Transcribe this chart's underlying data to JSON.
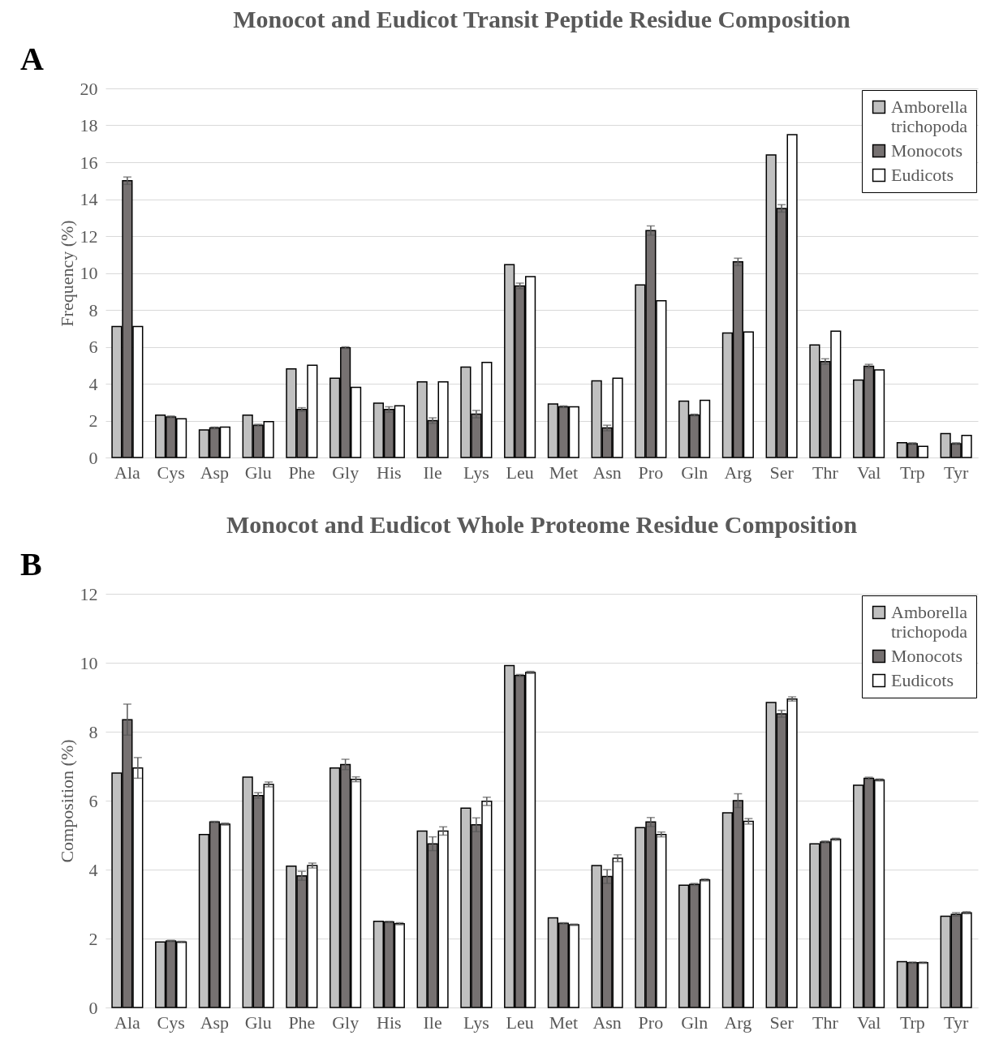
{
  "chart_data": [
    {
      "type": "bar",
      "title": "Monocot and Eudicot Transit Peptide Residue Composition",
      "ylabel": "Frequency (%)",
      "annotations": [
        "A"
      ],
      "categories": [
        "Ala",
        "Cys",
        "Asp",
        "Glu",
        "Phe",
        "Gly",
        "His",
        "Ile",
        "Lys",
        "Leu",
        "Met",
        "Asn",
        "Pro",
        "Gln",
        "Arg",
        "Ser",
        "Thr",
        "Val",
        "Trp",
        "Tyr"
      ],
      "series": [
        {
          "name": "Amborella trichopoda",
          "color": "#c0c0c0",
          "values": [
            7.1,
            2.3,
            1.5,
            2.3,
            4.8,
            4.3,
            2.95,
            4.1,
            4.9,
            10.45,
            2.9,
            4.15,
            9.35,
            3.05,
            6.75,
            16.4,
            6.1,
            4.2,
            0.8,
            1.3
          ]
        },
        {
          "name": "Monocots",
          "color": "#767171",
          "values": [
            15.0,
            2.2,
            1.6,
            1.75,
            2.6,
            5.95,
            2.6,
            2.0,
            2.35,
            9.3,
            2.75,
            1.6,
            12.3,
            2.3,
            10.6,
            13.5,
            5.2,
            4.95,
            0.75,
            0.75
          ],
          "errors": [
            0.2,
            0.05,
            0.05,
            0.05,
            0.1,
            0.05,
            0.15,
            0.15,
            0.2,
            0.15,
            0.05,
            0.15,
            0.25,
            0.05,
            0.2,
            0.2,
            0.15,
            0.1,
            0.05,
            0.05
          ]
        },
        {
          "name": "Eudicots",
          "color": "#ffffff",
          "values": [
            7.1,
            2.1,
            1.65,
            1.95,
            5.0,
            3.8,
            2.8,
            4.1,
            5.15,
            9.8,
            2.75,
            4.3,
            8.5,
            3.1,
            6.8,
            17.5,
            6.85,
            4.75,
            0.6,
            1.2
          ]
        }
      ],
      "ylim": [
        0,
        20
      ],
      "yticks": [
        0,
        2,
        4,
        6,
        8,
        10,
        12,
        14,
        16,
        18,
        20
      ],
      "grid": "y",
      "legend": "top right"
    },
    {
      "type": "bar",
      "title": "Monocot and Eudicot Whole Proteome Residue Composition",
      "ylabel": "Composition (%)",
      "annotations": [
        "B"
      ],
      "categories": [
        "Ala",
        "Cys",
        "Asp",
        "Glu",
        "Phe",
        "Gly",
        "His",
        "Ile",
        "Lys",
        "Leu",
        "Met",
        "Asn",
        "Pro",
        "Gln",
        "Arg",
        "Ser",
        "Thr",
        "Val",
        "Trp",
        "Tyr"
      ],
      "series": [
        {
          "name": "Amborella trichopoda",
          "color": "#c0c0c0",
          "values": [
            6.8,
            1.9,
            5.02,
            6.68,
            4.1,
            6.95,
            2.5,
            5.12,
            5.78,
            9.92,
            2.6,
            4.12,
            5.22,
            3.55,
            5.65,
            8.85,
            4.75,
            6.45,
            1.33,
            2.65
          ]
        },
        {
          "name": "Monocots",
          "color": "#767171",
          "values": [
            8.35,
            1.93,
            5.38,
            6.15,
            3.82,
            7.05,
            2.48,
            4.75,
            5.3,
            9.63,
            2.44,
            3.8,
            5.38,
            3.57,
            6.0,
            8.52,
            4.8,
            6.65,
            1.3,
            2.7
          ],
          "errors": [
            0.45,
            0.02,
            0.02,
            0.08,
            0.13,
            0.15,
            0.02,
            0.2,
            0.2,
            0.03,
            0.02,
            0.2,
            0.13,
            0.03,
            0.2,
            0.1,
            0.03,
            0.03,
            0.02,
            0.05
          ]
        },
        {
          "name": "Eudicots",
          "color": "#ffffff",
          "values": [
            6.95,
            1.9,
            5.32,
            6.47,
            4.12,
            6.62,
            2.43,
            5.12,
            5.98,
            9.72,
            2.4,
            4.33,
            5.02,
            3.7,
            5.4,
            8.95,
            4.88,
            6.6,
            1.3,
            2.75
          ],
          "errors": [
            0.3,
            0.02,
            0.03,
            0.07,
            0.07,
            0.07,
            0.03,
            0.12,
            0.12,
            0.03,
            0.02,
            0.1,
            0.07,
            0.03,
            0.08,
            0.06,
            0.03,
            0.03,
            0.02,
            0.03
          ]
        }
      ],
      "ylim": [
        0,
        12
      ],
      "yticks": [
        0,
        2,
        4,
        6,
        8,
        10,
        12
      ],
      "grid": "y",
      "legend": "top right"
    }
  ]
}
